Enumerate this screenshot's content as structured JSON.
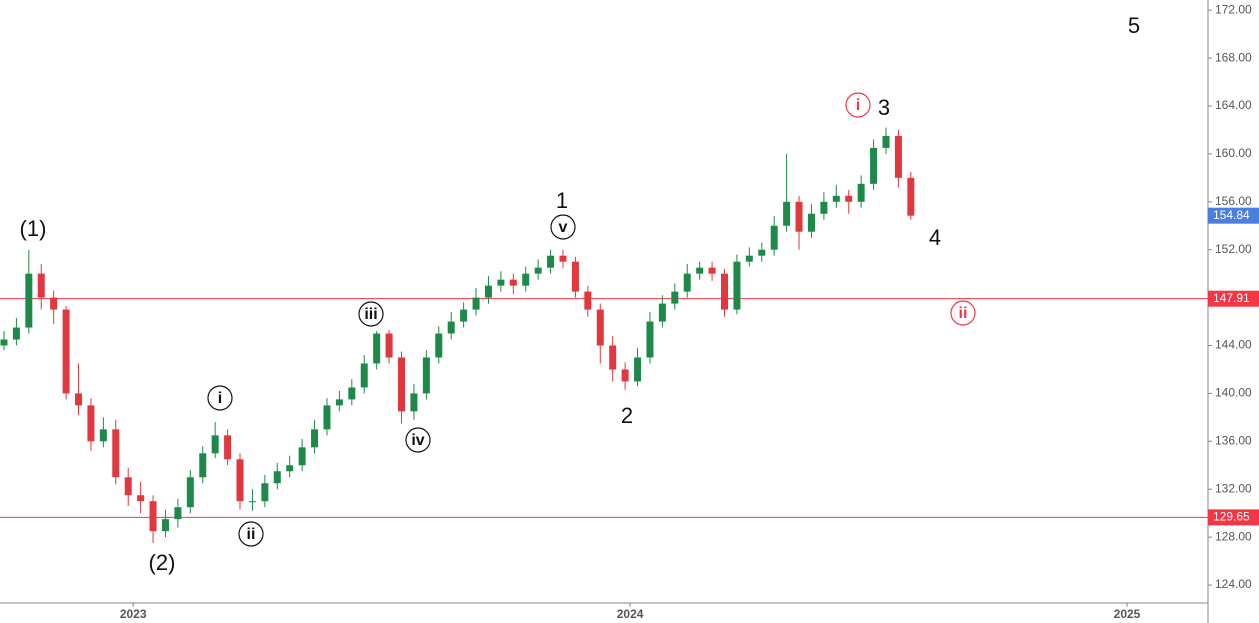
{
  "chart_data": {
    "type": "candlestick",
    "x": [
      2022.74,
      2022.765,
      2022.79,
      2022.815,
      2022.84,
      2022.865,
      2022.89,
      2022.915,
      2022.94,
      2022.965,
      2022.99,
      2023.015,
      2023.04,
      2023.065,
      2023.09,
      2023.115,
      2023.14,
      2023.165,
      2023.19,
      2023.215,
      2023.24,
      2023.265,
      2023.29,
      2023.315,
      2023.34,
      2023.365,
      2023.39,
      2023.415,
      2023.44,
      2023.465,
      2023.49,
      2023.515,
      2023.54,
      2023.565,
      2023.59,
      2023.615,
      2023.64,
      2023.665,
      2023.69,
      2023.715,
      2023.74,
      2023.765,
      2023.79,
      2023.815,
      2023.84,
      2023.865,
      2023.89,
      2023.915,
      2023.94,
      2023.965,
      2023.99,
      2024.015,
      2024.04,
      2024.065,
      2024.09,
      2024.115,
      2024.14,
      2024.165,
      2024.19,
      2024.215,
      2024.24,
      2024.265,
      2024.29,
      2024.315,
      2024.34,
      2024.365,
      2024.39,
      2024.415,
      2024.44,
      2024.465,
      2024.49,
      2024.515,
      2024.54,
      2024.565
    ],
    "ohlc": [
      [
        144,
        145.2,
        143.6,
        144.5
      ],
      [
        144.5,
        146.3,
        144,
        145.5
      ],
      [
        145.5,
        152,
        145,
        150
      ],
      [
        150,
        150.8,
        147,
        148
      ],
      [
        148,
        148.6,
        145.8,
        147
      ],
      [
        147,
        147.3,
        139.5,
        140
      ],
      [
        140,
        142.5,
        138.2,
        139
      ],
      [
        139,
        139.6,
        135.2,
        136
      ],
      [
        136,
        138,
        135.5,
        137
      ],
      [
        137,
        137.8,
        132.4,
        133
      ],
      [
        133,
        133.8,
        130.6,
        131.5
      ],
      [
        131.5,
        132.6,
        130,
        131
      ],
      [
        131,
        131.5,
        127.5,
        128.5
      ],
      [
        128.5,
        130.3,
        128,
        129.5
      ],
      [
        129.5,
        131.2,
        128.8,
        130.5
      ],
      [
        130.5,
        133.6,
        130,
        133
      ],
      [
        133,
        135.6,
        132.5,
        135
      ],
      [
        135,
        137.6,
        134.6,
        136.5
      ],
      [
        136.5,
        137,
        134,
        134.5
      ],
      [
        134.5,
        135,
        130.3,
        131
      ],
      [
        131,
        132,
        130.2,
        131
      ],
      [
        131,
        133.2,
        130.5,
        132.5
      ],
      [
        132.5,
        134.2,
        132,
        133.5
      ],
      [
        133.5,
        134.8,
        133,
        134
      ],
      [
        134,
        136.2,
        133.5,
        135.5
      ],
      [
        135.5,
        137.8,
        135,
        137
      ],
      [
        137,
        139.6,
        136.5,
        139
      ],
      [
        139,
        140.2,
        138.5,
        139.5
      ],
      [
        139.5,
        141.2,
        139,
        140.5
      ],
      [
        140.5,
        143.2,
        140,
        142.5
      ],
      [
        142.5,
        145.2,
        142,
        145
      ],
      [
        145,
        145.3,
        142.5,
        143
      ],
      [
        143,
        143.5,
        137.5,
        138.5
      ],
      [
        138.5,
        140.8,
        137.8,
        140
      ],
      [
        140,
        143.6,
        139.5,
        143
      ],
      [
        143,
        145.6,
        142.5,
        145
      ],
      [
        145,
        146.8,
        144.5,
        146
      ],
      [
        146,
        147.6,
        145.5,
        147
      ],
      [
        147,
        148.8,
        146.5,
        148
      ],
      [
        148,
        149.8,
        147.5,
        149
      ],
      [
        149,
        150.2,
        148.5,
        149.5
      ],
      [
        149.5,
        150,
        148.3,
        149
      ],
      [
        149,
        150.6,
        148.5,
        150
      ],
      [
        150,
        151.2,
        149.5,
        150.5
      ],
      [
        150.5,
        152,
        150,
        151.5
      ],
      [
        151.5,
        152,
        150.5,
        151
      ],
      [
        151,
        151.4,
        148,
        148.5
      ],
      [
        148.5,
        149,
        146.4,
        147
      ],
      [
        147,
        147.5,
        142.5,
        144
      ],
      [
        144,
        144.8,
        141,
        142
      ],
      [
        142,
        142.6,
        140.3,
        141
      ],
      [
        141,
        143.8,
        140.6,
        143
      ],
      [
        143,
        146.8,
        142.5,
        146
      ],
      [
        146,
        148.2,
        145.5,
        147.5
      ],
      [
        147.5,
        149.2,
        147,
        148.5
      ],
      [
        148.5,
        150.8,
        148,
        150
      ],
      [
        150,
        151,
        149.5,
        150.5
      ],
      [
        150.5,
        151,
        149.4,
        150
      ],
      [
        150,
        150.4,
        146.4,
        147
      ],
      [
        147,
        151.6,
        146.6,
        151
      ],
      [
        151,
        152.2,
        150.6,
        151.5
      ],
      [
        151.5,
        152.6,
        151,
        152
      ],
      [
        152,
        154.8,
        151.5,
        154
      ],
      [
        154,
        160,
        153.5,
        156
      ],
      [
        156,
        156.5,
        152,
        153.5
      ],
      [
        153.5,
        155.8,
        153,
        155
      ],
      [
        155,
        156.8,
        154.5,
        156
      ],
      [
        156,
        157.4,
        155.5,
        156.5
      ],
      [
        156.5,
        157,
        155,
        156
      ],
      [
        156,
        158.2,
        155.5,
        157.5
      ],
      [
        157.5,
        161.2,
        157,
        160.5
      ],
      [
        160.5,
        162.2,
        160,
        161.5
      ],
      [
        161.5,
        162,
        157.2,
        158
      ],
      [
        158,
        158.5,
        154.5,
        154.84
      ]
    ],
    "up_color": "#1e8a4a",
    "down_color": "#e0383e",
    "levels": [
      147.91,
      129.65
    ],
    "level_color": "#f23645",
    "last_color": "#4a7fe0",
    "xlim": [
      2022.732,
      2025.163
    ],
    "xticks": [
      2023,
      2024,
      2025
    ],
    "ylim": [
      122.5,
      172.85
    ],
    "yticks": [
      {
        "value": 124,
        "label": "124.00"
      },
      {
        "value": 128,
        "label": "128.00"
      },
      {
        "value": 132,
        "label": "132.00"
      },
      {
        "value": 136,
        "label": "136.00"
      },
      {
        "value": 140,
        "label": "140.00"
      },
      {
        "value": 144,
        "label": "144.00"
      },
      {
        "value": 148,
        "label": "148.00"
      },
      {
        "value": 152,
        "label": "152.00"
      },
      {
        "value": 156,
        "label": "156.00"
      },
      {
        "value": 160,
        "label": "160.00"
      },
      {
        "value": 164,
        "label": "164.00"
      },
      {
        "value": 168,
        "label": "168.00"
      },
      {
        "value": 172,
        "label": "172.00"
      }
    ],
    "annotations": [
      {
        "text": "(1)",
        "style": "plain"
      },
      {
        "text": "(2)",
        "style": "plain"
      },
      {
        "text": "i",
        "style": "circle"
      },
      {
        "text": "ii",
        "style": "circle"
      },
      {
        "text": "iii",
        "style": "circle"
      },
      {
        "text": "iv",
        "style": "circle"
      },
      {
        "text": "v",
        "style": "circle"
      },
      {
        "text": "1",
        "style": "plain"
      },
      {
        "text": "2",
        "style": "plain"
      },
      {
        "text": "i",
        "style": "circle-red"
      },
      {
        "text": "3",
        "style": "plain"
      },
      {
        "text": "4",
        "style": "plain"
      },
      {
        "text": "5",
        "style": "plain"
      },
      {
        "text": "ii",
        "style": "circle-red"
      }
    ]
  }
}
